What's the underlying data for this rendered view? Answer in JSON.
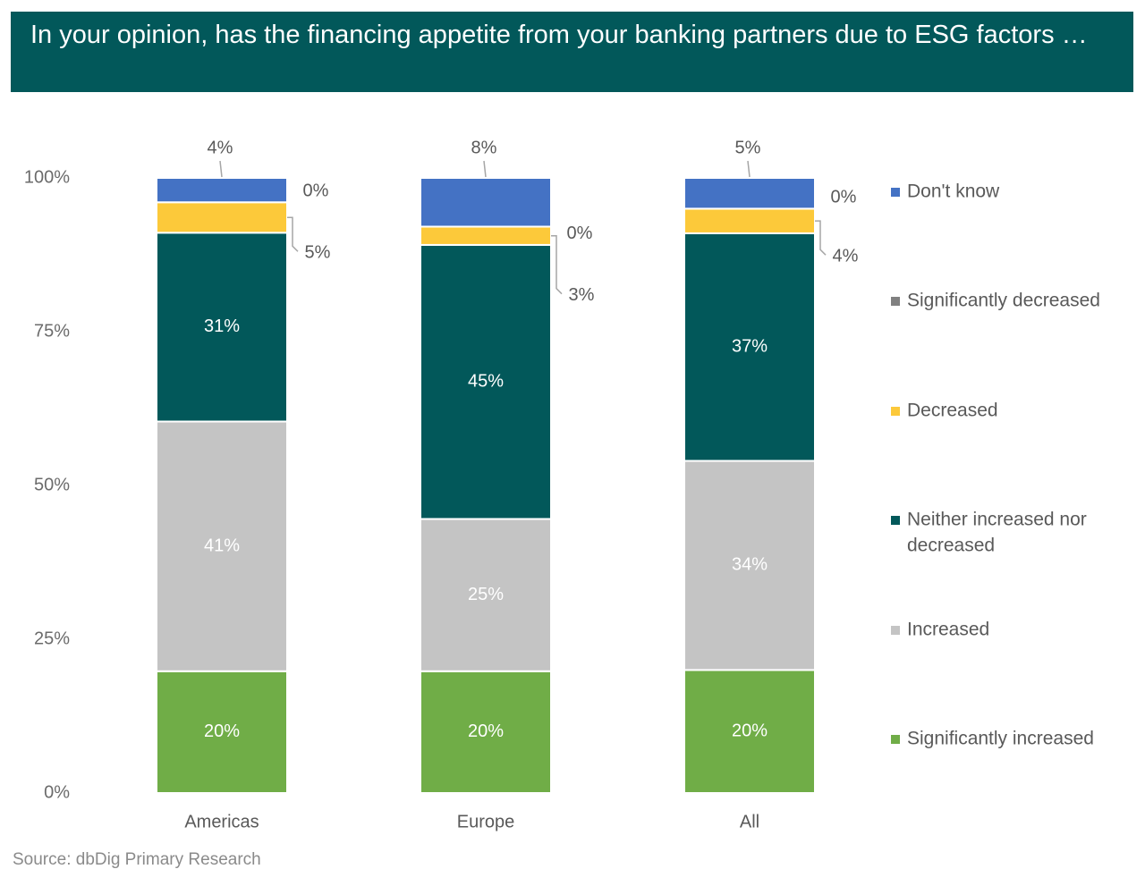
{
  "title": "In your opinion, has the financing appetite from your banking partners due to ESG factors …",
  "source": "Source: dbDig Primary Research",
  "colors": {
    "header_bg": "#02585a",
    "dont_know": "#4472c4",
    "significantly_decreased": "#808080",
    "decreased": "#fcc93a",
    "neither": "#02585a",
    "increased": "#c4c4c4",
    "significantly_increased": "#70ad47"
  },
  "chart_data": {
    "type": "bar",
    "stacked": true,
    "percent_stacked": true,
    "categories": [
      "Americas",
      "Europe",
      "All"
    ],
    "y_ticks": [
      "0%",
      "25%",
      "50%",
      "75%",
      "100%"
    ],
    "ylim": [
      0,
      100
    ],
    "legend_position": "right",
    "series": [
      {
        "name": "Significantly increased",
        "key": "significantly_increased",
        "values": [
          20,
          20,
          20
        ],
        "labels": [
          "20%",
          "20%",
          "20%"
        ]
      },
      {
        "name": "Increased",
        "key": "increased",
        "values": [
          41,
          25,
          34
        ],
        "labels": [
          "41%",
          "25%",
          "34%"
        ]
      },
      {
        "name": "Neither increased nor decreased",
        "key": "neither",
        "values": [
          31,
          45,
          37
        ],
        "labels": [
          "31%",
          "45%",
          "37%"
        ]
      },
      {
        "name": "Decreased",
        "key": "decreased",
        "values": [
          5,
          3,
          4
        ],
        "labels": [
          "5%",
          "3%",
          "4%"
        ]
      },
      {
        "name": "Significantly decreased",
        "key": "significantly_decreased",
        "values": [
          0,
          0,
          0
        ],
        "labels": [
          "0%",
          "0%",
          "0%"
        ]
      },
      {
        "name": "Don't know",
        "key": "dont_know",
        "values": [
          4,
          8,
          5
        ],
        "labels": [
          "4%",
          "8%",
          "5%"
        ]
      }
    ],
    "legend_order": [
      "Don't know",
      "Significantly decreased",
      "Decreased",
      "Neither increased nor decreased",
      "Increased",
      "Significantly increased"
    ]
  }
}
